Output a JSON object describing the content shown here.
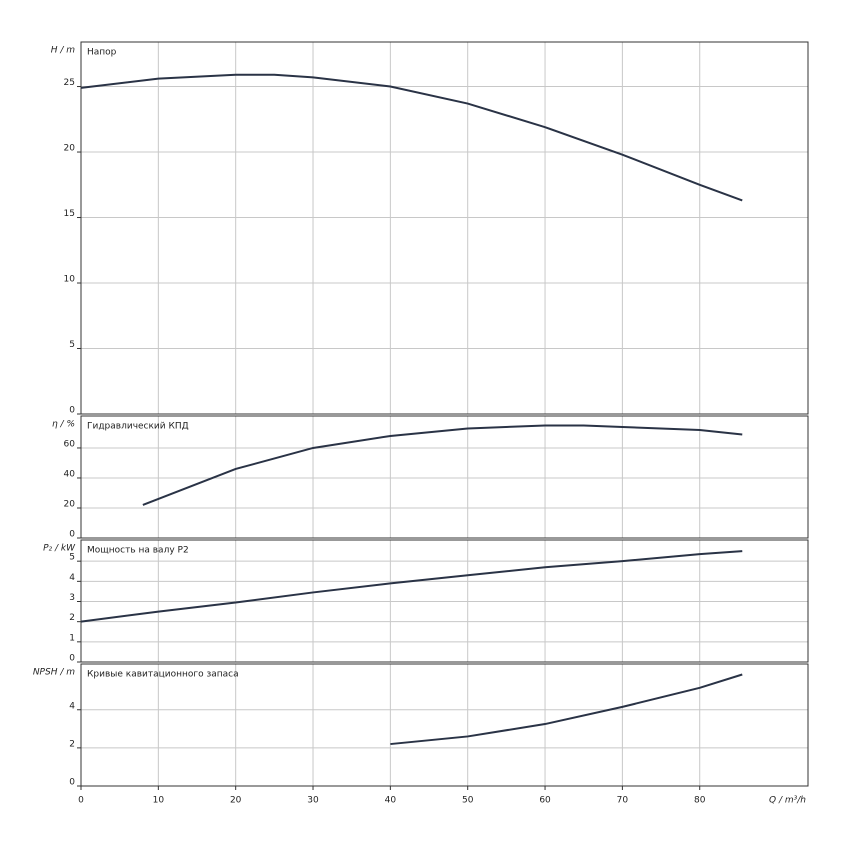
{
  "chart_data": [
    {
      "type": "line",
      "title": "Напор",
      "y_label": "H / m",
      "x": [
        0,
        10,
        20,
        25,
        30,
        40,
        50,
        60,
        70,
        80,
        85.5
      ],
      "series": [
        {
          "color": "#2a3346",
          "values": [
            24.9,
            25.6,
            25.9,
            25.9,
            25.7,
            25.0,
            23.7,
            21.9,
            19.8,
            17.5,
            16.3
          ]
        }
      ],
      "xlim": [
        0,
        94
      ],
      "xticks": [
        0,
        10,
        20,
        30,
        40,
        50,
        60,
        70,
        80
      ],
      "ylim": [
        0,
        28.4
      ],
      "yticks": [
        0,
        5,
        10,
        15,
        20,
        25
      ],
      "grid": true
    },
    {
      "type": "line",
      "title": "Гидравлический КПД",
      "y_label": "η / %",
      "x": [
        8,
        10,
        15,
        20,
        30,
        40,
        50,
        60,
        65,
        70,
        80,
        85.5
      ],
      "series": [
        {
          "color": "#2a3346",
          "values": [
            22,
            26,
            36,
            46,
            60,
            68,
            73,
            75,
            75,
            74,
            72,
            69
          ]
        }
      ],
      "xlim": [
        0,
        94
      ],
      "xticks": [
        0,
        10,
        20,
        30,
        40,
        50,
        60,
        70,
        80
      ],
      "ylim": [
        0,
        81.3
      ],
      "yticks": [
        0,
        20,
        40,
        60
      ],
      "grid": true
    },
    {
      "type": "line",
      "title": "Мощность на валу P2",
      "y_label": "P₂ / kW",
      "x": [
        0,
        10,
        20,
        30,
        40,
        50,
        60,
        70,
        80,
        85.5
      ],
      "series": [
        {
          "color": "#2a3346",
          "values": [
            2.0,
            2.5,
            2.95,
            3.45,
            3.9,
            4.3,
            4.7,
            5.0,
            5.35,
            5.5
          ]
        }
      ],
      "xlim": [
        0,
        94
      ],
      "xticks": [
        0,
        10,
        20,
        30,
        40,
        50,
        60,
        70,
        80
      ],
      "ylim": [
        0,
        6.05
      ],
      "yticks": [
        0,
        1,
        2,
        3,
        4,
        5
      ],
      "grid": true
    },
    {
      "type": "line",
      "title": "Кривые кавитационного запаса",
      "y_label": "NPSH / m",
      "x_label": "Q / m³/h",
      "x": [
        40,
        50,
        60,
        70,
        80,
        85.5
      ],
      "series": [
        {
          "color": "#2a3346",
          "values": [
            2.2,
            2.6,
            3.25,
            4.15,
            5.15,
            5.85
          ]
        }
      ],
      "xlim": [
        0,
        94
      ],
      "xticks": [
        0,
        10,
        20,
        30,
        40,
        50,
        60,
        70,
        80
      ],
      "ylim": [
        0,
        6.4
      ],
      "yticks": [
        0,
        2,
        4
      ],
      "grid": true
    }
  ]
}
